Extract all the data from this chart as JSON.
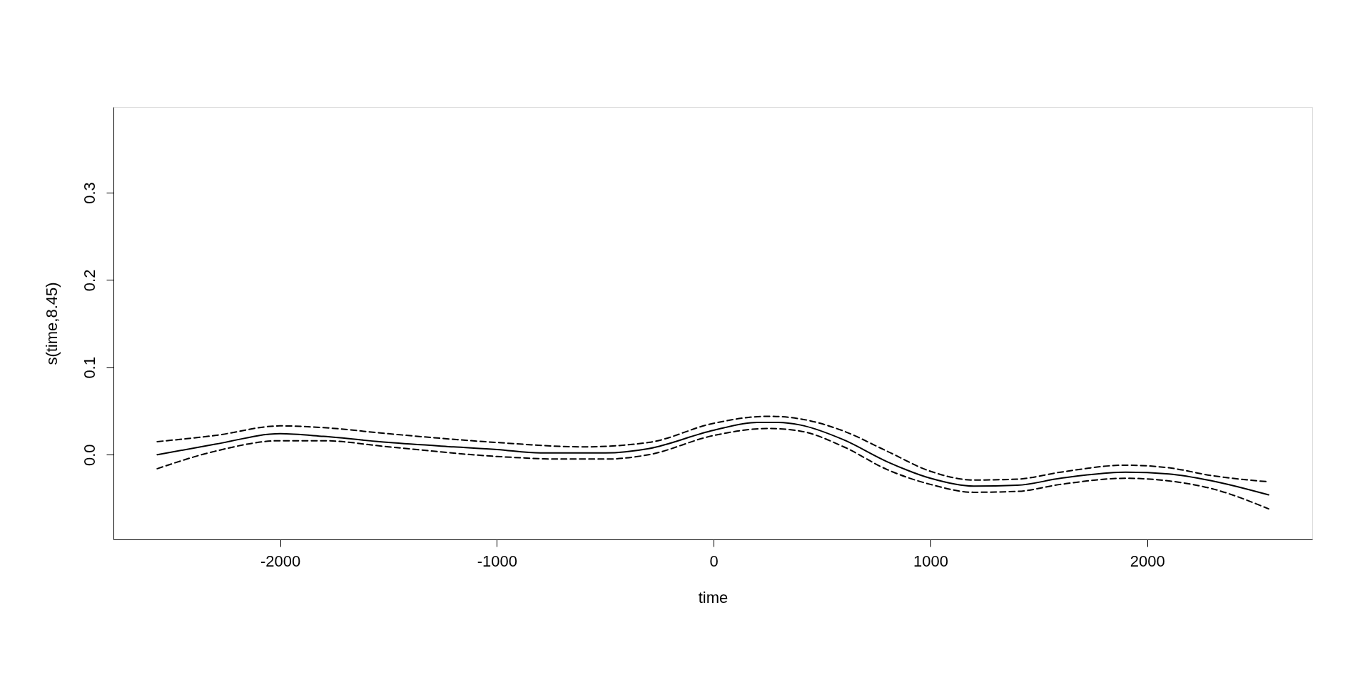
{
  "chart_data": {
    "type": "line",
    "xlabel": "time",
    "ylabel": "s(time,8.45)",
    "xlim": [
      -2769,
      2761
    ],
    "ylim": [
      -0.097,
      0.398
    ],
    "xticks": [
      -2000,
      -1000,
      0,
      1000,
      2000
    ],
    "yticks": [
      {
        "value": 0,
        "label": "0.0"
      },
      0.1,
      0.2,
      0.3
    ],
    "grid": false,
    "marker": "none",
    "series": [
      {
        "color": "#000000",
        "line_style": "solid",
        "x": [
          -2567,
          -2300,
          -2000,
          -1800,
          -1500,
          -1200,
          -1000,
          -800,
          -500,
          -300,
          0,
          200,
          300,
          400,
          600,
          800,
          1000,
          1200,
          1400,
          1600,
          1900,
          2100,
          2300,
          2560
        ],
        "values": [
          0.0,
          0.012,
          0.024,
          0.021,
          0.014,
          0.009,
          0.006,
          0.002,
          0.002,
          0.007,
          0.028,
          0.037,
          0.037,
          0.034,
          0.017,
          -0.008,
          -0.027,
          -0.036,
          -0.035,
          -0.027,
          -0.02,
          -0.022,
          -0.03,
          -0.046
        ]
      },
      {
        "color": "#000000",
        "line_style": "dashed",
        "x": [
          -2567,
          -2300,
          -2000,
          -1800,
          -1500,
          -1000,
          -600,
          -300,
          0,
          250,
          400,
          600,
          800,
          1000,
          1200,
          1400,
          1600,
          1900,
          2100,
          2300,
          2560
        ],
        "values": [
          0.015,
          0.022,
          0.033,
          0.031,
          0.024,
          0.014,
          0.009,
          0.014,
          0.036,
          0.044,
          0.041,
          0.027,
          0.004,
          -0.019,
          -0.029,
          -0.028,
          -0.02,
          -0.012,
          -0.015,
          -0.024,
          -0.031
        ]
      },
      {
        "color": "#000000",
        "line_style": "dashed",
        "x": [
          -2567,
          -2300,
          -2000,
          -1800,
          -1500,
          -1000,
          -700,
          -500,
          -300,
          0,
          250,
          400,
          600,
          800,
          1000,
          1200,
          1400,
          1600,
          1900,
          2100,
          2300,
          2560
        ],
        "values": [
          -0.016,
          0.004,
          0.016,
          0.016,
          0.009,
          -0.002,
          -0.005,
          -0.005,
          0.0,
          0.022,
          0.03,
          0.027,
          0.009,
          -0.017,
          -0.034,
          -0.043,
          -0.042,
          -0.034,
          -0.027,
          -0.03,
          -0.039,
          -0.062
        ]
      }
    ]
  }
}
